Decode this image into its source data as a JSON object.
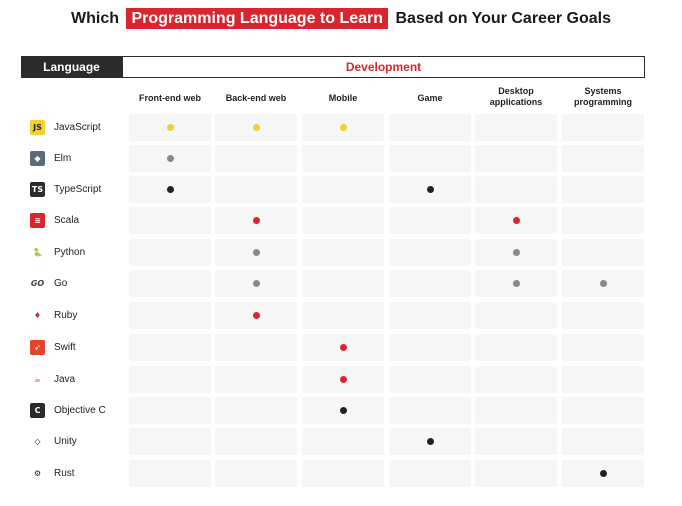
{
  "title": {
    "before": "Which",
    "highlight": "Programming Language to Learn",
    "after": "Based on Your Career Goals"
  },
  "header": {
    "language": "Language",
    "development": "Development"
  },
  "colors": {
    "red": "#d7262e",
    "yellow": "#f2d02e",
    "gray": "#888888",
    "black": "#222222"
  },
  "chart_data": {
    "type": "table",
    "columns": [
      "Front-end web",
      "Back-end web",
      "Mobile",
      "Game",
      "Desktop applications",
      "Systems programming"
    ],
    "rows": [
      {
        "language": "JavaScript",
        "icon": "javascript-icon",
        "dot_color": "yellow",
        "cells": [
          1,
          1,
          1,
          0,
          0,
          0
        ]
      },
      {
        "language": "Elm",
        "icon": "elm-icon",
        "dot_color": "gray",
        "cells": [
          1,
          0,
          0,
          0,
          0,
          0
        ]
      },
      {
        "language": "TypeScript",
        "icon": "typescript-icon",
        "dot_color": "black",
        "cells": [
          1,
          0,
          0,
          1,
          0,
          0
        ]
      },
      {
        "language": "Scala",
        "icon": "scala-icon",
        "dot_color": "red",
        "cells": [
          0,
          1,
          0,
          0,
          1,
          0
        ]
      },
      {
        "language": "Python",
        "icon": "python-icon",
        "dot_color": "gray",
        "cells": [
          0,
          1,
          0,
          0,
          1,
          0
        ]
      },
      {
        "language": "Go",
        "icon": "go-icon",
        "dot_color": "gray",
        "cells": [
          0,
          1,
          0,
          0,
          1,
          1
        ]
      },
      {
        "language": "Ruby",
        "icon": "ruby-icon",
        "dot_color": "red",
        "cells": [
          0,
          1,
          0,
          0,
          0,
          0
        ]
      },
      {
        "language": "Swift",
        "icon": "swift-icon",
        "dot_color": "red",
        "cells": [
          0,
          0,
          1,
          0,
          0,
          0
        ]
      },
      {
        "language": "Java",
        "icon": "java-icon",
        "dot_color": "red",
        "cells": [
          0,
          0,
          1,
          0,
          0,
          0
        ]
      },
      {
        "language": "Objective C",
        "icon": "objective-c-icon",
        "dot_color": "black",
        "cells": [
          0,
          0,
          1,
          0,
          0,
          0
        ]
      },
      {
        "language": "Unity",
        "icon": "unity-icon",
        "dot_color": "black",
        "cells": [
          0,
          0,
          0,
          1,
          0,
          0
        ]
      },
      {
        "language": "Rust",
        "icon": "rust-icon",
        "dot_color": "black",
        "cells": [
          0,
          0,
          0,
          0,
          0,
          1
        ]
      }
    ]
  }
}
